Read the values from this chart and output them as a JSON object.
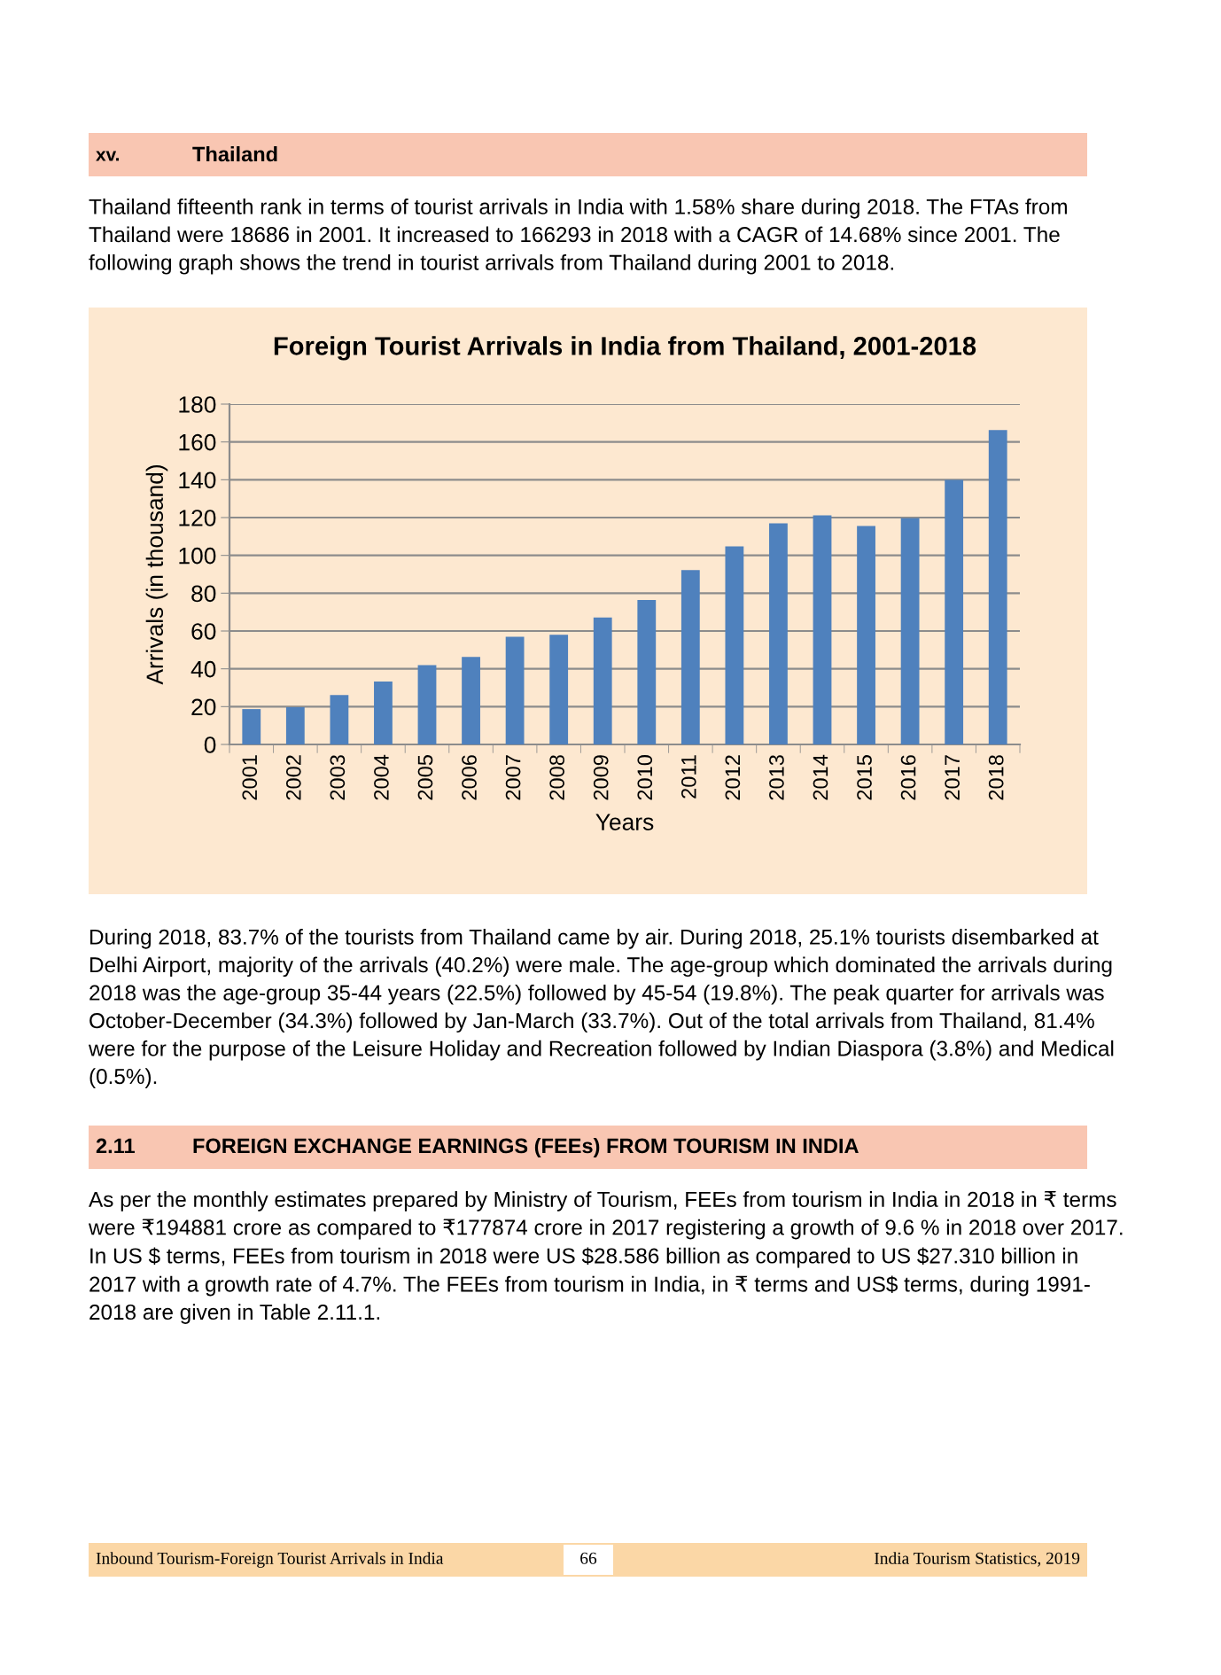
{
  "chart_data": {
    "type": "bar",
    "title": "Foreign Tourist Arrivals in India from Thailand, 2001-2018",
    "xlabel": "Years",
    "ylabel": "Arrivals (in thousand)",
    "categories": [
      "2001",
      "2002",
      "2003",
      "2004",
      "2005",
      "2006",
      "2007",
      "2008",
      "2009",
      "2010",
      "2011",
      "2012",
      "2013",
      "2014",
      "2015",
      "2016",
      "2017",
      "2018"
    ],
    "values": [
      18.7,
      19.7,
      26.1,
      33.3,
      42.0,
      46.3,
      56.9,
      58.0,
      67.1,
      76.4,
      92.2,
      104.8,
      117.0,
      121.2,
      115.6,
      119.7,
      139.9,
      166.3
    ],
    "color": "#4f81bd",
    "ylim": [
      0,
      180
    ],
    "yticks": [
      0,
      20,
      40,
      60,
      80,
      100,
      120,
      140,
      160,
      180
    ],
    "grid": "y",
    "annotations": [
      "xv.",
      "Thailand",
      "Thailand fifteenth rank in terms of tourist arrivals in India with 1.58% share during 2018. The FTAs from\nThailand were 18686 in 2001. It increased to 166293 in 2018 with a CAGR of 14.68% since 2001. The\nfollowing graph shows the trend in tourist arrivals from Thailand during 2001 to 2018.",
      "During 2018, 83.7% of the tourists from Thailand came by air. During 2018, 25.1% tourists disembarked at\nDelhi Airport, majority of the arrivals (40.2%) were male. The age-group which dominated the arrivals during\n2018 was the age-group 35-44 years (22.5%) followed by 45-54 (19.8%). The peak quarter for arrivals was\nOctober-December (34.3%) followed by Jan-March (33.7%). Out of the total arrivals from Thailand, 81.4%\nwere for the purpose of the Leisure Holiday and Recreation followed by Indian Diaspora (3.8%) and Medical\n(0.5%).",
      "2.11",
      "FOREIGN EXCHANGE EARNINGS (FEEs) FROM TOURISM IN INDIA",
      "As per the monthly estimates prepared by Ministry of Tourism, FEEs from tourism in India in 2018 in ₹ terms\nwere ₹194881 crore as compared to ₹177874 crore in 2017 registering a growth of 9.6 % in 2018 over 2017.\nIn US $ terms, FEEs from tourism in 2018 were US $28.586 billion as compared to US $27.310 billion in\n2017 with a growth rate of 4.7%. The FEEs from tourism in India, in ₹ terms and US$ terms, during 1991-\n2018 are given in Table 2.11.1.",
      "Inbound Tourism-Foreign Tourist Arrivals in India",
      "66",
      "India Tourism Statistics, 2019"
    ]
  }
}
